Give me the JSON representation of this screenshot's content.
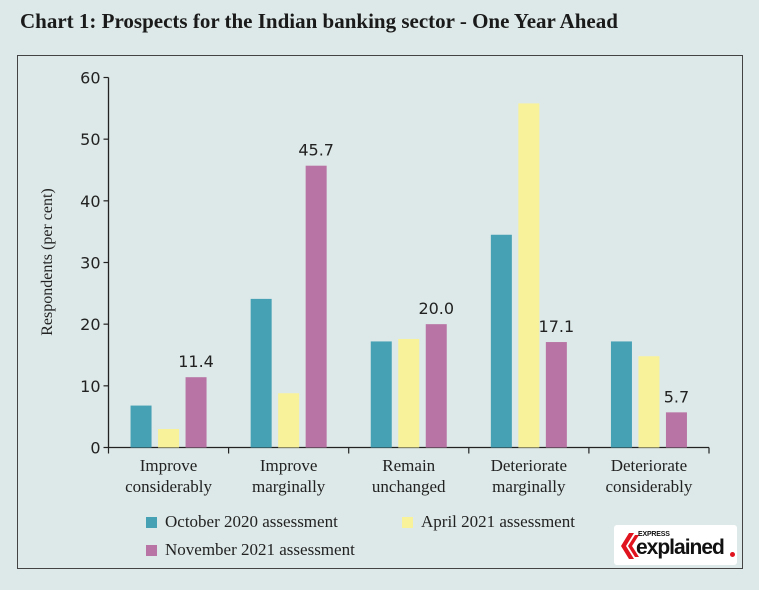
{
  "chart_data": {
    "type": "bar",
    "title": "Chart 1: Prospects for the Indian banking sector - One Year Ahead",
    "ylabel": "Respondents (per cent)",
    "xlabel": "",
    "ylim": [
      0,
      60
    ],
    "yticks": [
      0,
      10,
      20,
      30,
      40,
      50,
      60
    ],
    "grid": false,
    "legend_position": "bottom",
    "categories": [
      [
        "Improve",
        "considerably"
      ],
      [
        "Improve",
        "marginally"
      ],
      [
        "Remain",
        "unchanged"
      ],
      [
        "Deteriorate",
        "marginally"
      ],
      [
        "Deteriorate",
        "considerably"
      ]
    ],
    "series": [
      {
        "name": "October 2020 assessment",
        "color": "#46a1b5",
        "values": [
          6.8,
          24.1,
          17.2,
          34.5,
          17.2
        ]
      },
      {
        "name": "April 2021 assessment",
        "color": "#f8f29a",
        "values": [
          3.0,
          8.8,
          17.6,
          55.8,
          14.8
        ]
      },
      {
        "name": "November 2021 assessment",
        "color": "#b874a5",
        "values": [
          11.4,
          45.7,
          20.0,
          17.1,
          5.7
        ],
        "data_labels": [
          "11.4",
          "45.7",
          "20.0",
          "17.1",
          "5.7"
        ]
      }
    ]
  },
  "logo": {
    "text_small": "EXPRESS",
    "text_large": "explained"
  }
}
